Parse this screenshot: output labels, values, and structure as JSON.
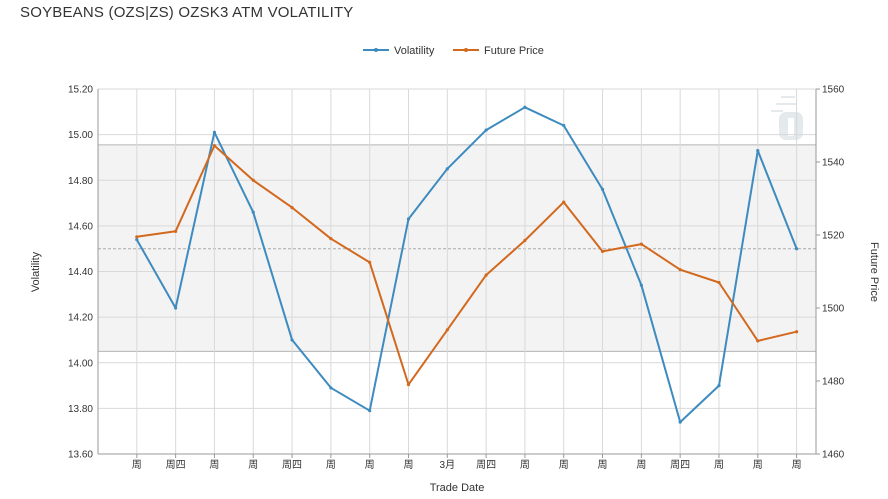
{
  "header": {
    "title": "SOYBEANS (OZS|ZS) OZSK3 ATM VOLATILITY"
  },
  "colors": {
    "volatility": "#3d8bbf",
    "future_price": "#d2691e",
    "band_fill": "#f3f3f3",
    "grid": "#d9d9d9",
    "band_border": "#b5b5b5",
    "mean_line": "#aaaaaa",
    "watermark": "#cfd8dc"
  },
  "chart_data": {
    "type": "line",
    "xlabel": "Trade Date",
    "ylabel": "Volatility",
    "y2label": "Future Price",
    "categories": [
      "周",
      "周四",
      "周",
      "周",
      "周四",
      "周",
      "周",
      "周",
      "3月",
      "周四",
      "周",
      "周",
      "周",
      "周",
      "周四",
      "周",
      "周",
      "周"
    ],
    "ylim": [
      13.6,
      15.2
    ],
    "y_ticks": [
      "13.60",
      "13.80",
      "14.00",
      "14.20",
      "14.40",
      "14.60",
      "14.80",
      "15.00",
      "15.20"
    ],
    "y2lim": [
      1460,
      1560
    ],
    "y2_ticks": [
      "1460",
      "1480",
      "1500",
      "1520",
      "1540",
      "1560"
    ],
    "grid": true,
    "legend": "top-center",
    "band": {
      "low": 14.05,
      "high": 14.955,
      "mean": 14.5
    },
    "series": [
      {
        "name": "Volatility",
        "axis": "left",
        "color_key": "volatility",
        "values": [
          14.54,
          14.24,
          15.01,
          14.66,
          14.1,
          13.89,
          13.79,
          14.63,
          14.85,
          15.02,
          15.12,
          15.04,
          14.76,
          14.34,
          13.74,
          13.9,
          14.93,
          14.5
        ]
      },
      {
        "name": "Future Price",
        "axis": "right",
        "color_key": "future_price",
        "values": [
          1519.5,
          1521,
          1544.5,
          1535,
          1527.5,
          1519,
          1512.5,
          1479,
          1494,
          1509,
          1518.5,
          1529,
          1515.5,
          1517.5,
          1510.5,
          1507,
          1491,
          1493.5
        ]
      }
    ]
  }
}
